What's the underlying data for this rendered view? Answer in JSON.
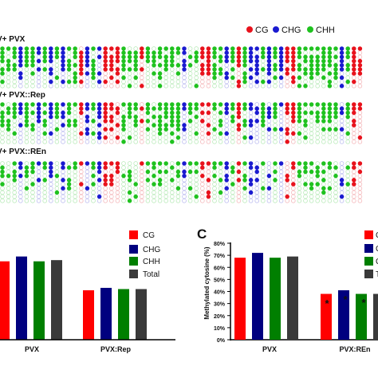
{
  "legend_top": {
    "items": [
      {
        "label": "CG",
        "color": "#e8121c"
      },
      {
        "label": "CHG",
        "color": "#1a1ad0"
      },
      {
        "label": "CHH",
        "color": "#1fc21f"
      }
    ]
  },
  "panels_a": [
    {
      "label": "V+ PVX"
    },
    {
      "label": "V+ PVX::Rep"
    },
    {
      "label": "V+ PVX::REn"
    }
  ],
  "panel_c_letter": "C",
  "colors": {
    "CG": "#ff0000",
    "CHG": "#00007f",
    "CHH": "#007f00",
    "Total": "#3a3a3a"
  },
  "chart_data": [
    {
      "type": "bar",
      "categories": [
        "PVX",
        "PVX:Rep"
      ],
      "series": [
        {
          "name": "CG",
          "values": [
            65,
            41
          ]
        },
        {
          "name": "CHG",
          "values": [
            69,
            43
          ]
        },
        {
          "name": "CHH",
          "values": [
            65,
            42
          ]
        },
        {
          "name": "Total",
          "values": [
            66,
            42
          ]
        }
      ],
      "ylim": [
        0,
        80
      ],
      "legend": [
        "CG",
        "CHG",
        "CHH",
        "Total"
      ]
    },
    {
      "type": "bar",
      "categories": [
        "PVX",
        "PVX:REn"
      ],
      "series": [
        {
          "name": "CG",
          "values": [
            68,
            38
          ]
        },
        {
          "name": "CHG",
          "values": [
            72,
            41
          ]
        },
        {
          "name": "CHH",
          "values": [
            68,
            38
          ]
        },
        {
          "name": "Total",
          "values": [
            69,
            38
          ]
        }
      ],
      "ylabel": "Methylated cytosine (%)",
      "yticks": [
        "0%",
        "10%",
        "20%",
        "30%",
        "40%",
        "50%",
        "60%",
        "70%",
        "80%"
      ],
      "ylim": [
        0,
        80
      ],
      "annotations": [
        "*",
        "*",
        "*"
      ],
      "legend": [
        "C",
        "C",
        "C",
        "T"
      ]
    }
  ]
}
